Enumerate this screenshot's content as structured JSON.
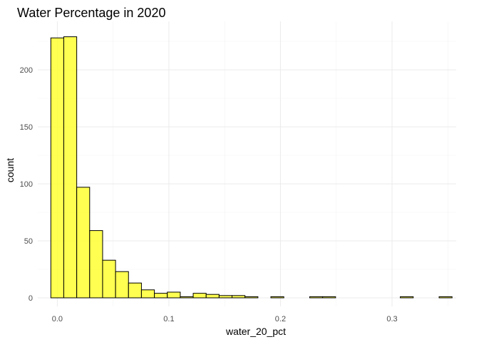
{
  "chart_data": {
    "type": "bar",
    "subtype": "histogram",
    "title": "Water Percentage in 2020",
    "xlabel": "water_20_pct",
    "ylabel": "count",
    "xlim": [
      -0.0175,
      0.3575
    ],
    "ylim": [
      0,
      240
    ],
    "binwidth": 0.0116,
    "bins": [
      {
        "center": 0.0,
        "count": 228
      },
      {
        "center": 0.0116,
        "count": 229
      },
      {
        "center": 0.0232,
        "count": 97
      },
      {
        "center": 0.0348,
        "count": 59
      },
      {
        "center": 0.0464,
        "count": 33
      },
      {
        "center": 0.058,
        "count": 23
      },
      {
        "center": 0.0696,
        "count": 13
      },
      {
        "center": 0.0812,
        "count": 7
      },
      {
        "center": 0.0928,
        "count": 4
      },
      {
        "center": 0.1044,
        "count": 5
      },
      {
        "center": 0.116,
        "count": 1
      },
      {
        "center": 0.1276,
        "count": 4
      },
      {
        "center": 0.1392,
        "count": 3
      },
      {
        "center": 0.1508,
        "count": 2
      },
      {
        "center": 0.1624,
        "count": 2
      },
      {
        "center": 0.174,
        "count": 1
      },
      {
        "center": 0.1856,
        "count": 0
      },
      {
        "center": 0.1972,
        "count": 1
      },
      {
        "center": 0.2088,
        "count": 0
      },
      {
        "center": 0.2204,
        "count": 0
      },
      {
        "center": 0.232,
        "count": 1
      },
      {
        "center": 0.2436,
        "count": 1
      },
      {
        "center": 0.2552,
        "count": 0
      },
      {
        "center": 0.2668,
        "count": 0
      },
      {
        "center": 0.2784,
        "count": 0
      },
      {
        "center": 0.29,
        "count": 0
      },
      {
        "center": 0.3016,
        "count": 0
      },
      {
        "center": 0.3132,
        "count": 1
      },
      {
        "center": 0.3248,
        "count": 0
      },
      {
        "center": 0.3364,
        "count": 0
      },
      {
        "center": 0.348,
        "count": 1
      }
    ],
    "x_ticks": [
      {
        "value": 0.0,
        "label": "0.0"
      },
      {
        "value": 0.1,
        "label": "0.1"
      },
      {
        "value": 0.2,
        "label": "0.2"
      },
      {
        "value": 0.3,
        "label": "0.3"
      }
    ],
    "y_ticks": [
      {
        "value": 0,
        "label": "0"
      },
      {
        "value": 50,
        "label": "50"
      },
      {
        "value": 100,
        "label": "100"
      },
      {
        "value": 150,
        "label": "150"
      },
      {
        "value": 200,
        "label": "200"
      }
    ],
    "grid": true,
    "colors": {
      "bar_fill": "#ffff33",
      "bar_stroke": "#000000"
    }
  }
}
